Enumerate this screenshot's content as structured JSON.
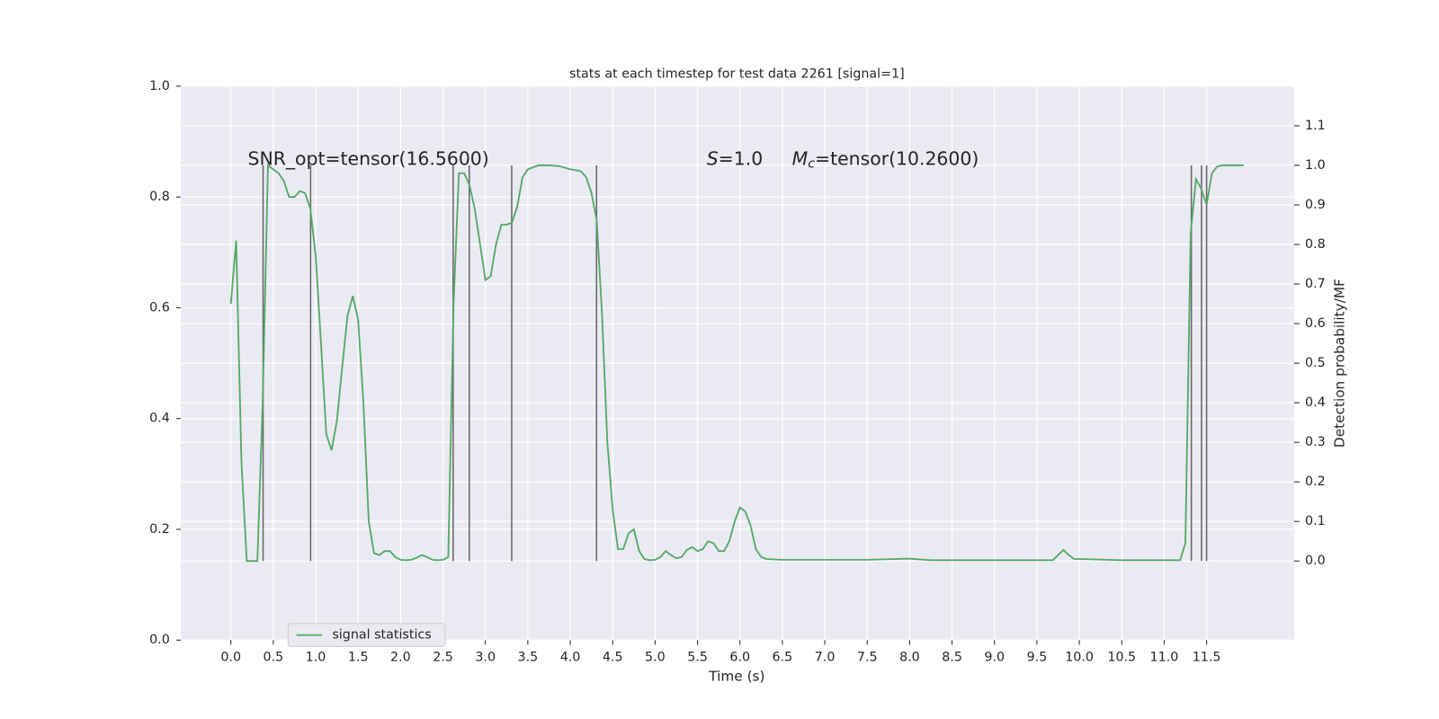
{
  "chart_data": {
    "type": "line",
    "title": "stats at each timestep for test data 2261 [signal=1]",
    "x_label": "Time (s)",
    "y2_label": "Detection probability/MF",
    "grid": true,
    "legend_position": "lower left",
    "xlim": [
      -0.59,
      12.53
    ],
    "ylim": [
      0,
      1
    ],
    "y2lim": [
      -0.2,
      1.2
    ],
    "xticks": [
      {
        "value": 0,
        "label": "0.0"
      },
      {
        "value": 0.5,
        "label": "0.5"
      },
      {
        "value": 1,
        "label": "1.0"
      },
      {
        "value": 1.5,
        "label": "1.5"
      },
      {
        "value": 2,
        "label": "2.0"
      },
      {
        "value": 2.5,
        "label": "2.5"
      },
      {
        "value": 3,
        "label": "3.0"
      },
      {
        "value": 3.5,
        "label": "3.5"
      },
      {
        "value": 4,
        "label": "4.0"
      },
      {
        "value": 4.5,
        "label": "4.5"
      },
      {
        "value": 5,
        "label": "5.0"
      },
      {
        "value": 5.5,
        "label": "5.5"
      },
      {
        "value": 6,
        "label": "6.0"
      },
      {
        "value": 6.5,
        "label": "6.5"
      },
      {
        "value": 7,
        "label": "7.0"
      },
      {
        "value": 7.5,
        "label": "7.5"
      },
      {
        "value": 8,
        "label": "8.0"
      },
      {
        "value": 8.5,
        "label": "8.5"
      },
      {
        "value": 9,
        "label": "9.0"
      },
      {
        "value": 9.5,
        "label": "9.5"
      },
      {
        "value": 10,
        "label": "10.0"
      },
      {
        "value": 10.5,
        "label": "10.5"
      },
      {
        "value": 11,
        "label": "11.0"
      },
      {
        "value": 11.5,
        "label": "11.5"
      }
    ],
    "yticks": [
      {
        "value": 0,
        "label": "0.0"
      },
      {
        "value": 0.2,
        "label": "0.2"
      },
      {
        "value": 0.4,
        "label": "0.4"
      },
      {
        "value": 0.6,
        "label": "0.6"
      },
      {
        "value": 0.8,
        "label": "0.8"
      },
      {
        "value": 1,
        "label": "1.0"
      }
    ],
    "y2ticks": [
      {
        "value": 0,
        "label": "0.0"
      },
      {
        "value": 0.1,
        "label": "0.1"
      },
      {
        "value": 0.2,
        "label": "0.2"
      },
      {
        "value": 0.3,
        "label": "0.3"
      },
      {
        "value": 0.4,
        "label": "0.4"
      },
      {
        "value": 0.5,
        "label": "0.5"
      },
      {
        "value": 0.6,
        "label": "0.6"
      },
      {
        "value": 0.7,
        "label": "0.7"
      },
      {
        "value": 0.8,
        "label": "0.8"
      },
      {
        "value": 0.9,
        "label": "0.9"
      },
      {
        "value": 1,
        "label": "1.0"
      },
      {
        "value": 1.1,
        "label": "1.1"
      }
    ],
    "x": [
      0,
      0.0625,
      0.125,
      0.1875,
      0.25,
      0.3125,
      0.375,
      0.4375,
      0.5,
      0.5625,
      0.625,
      0.6875,
      0.75,
      0.8125,
      0.875,
      0.9375,
      1.0,
      1.0625,
      1.125,
      1.1875,
      1.25,
      1.3125,
      1.375,
      1.4375,
      1.5,
      1.5625,
      1.625,
      1.6875,
      1.75,
      1.8125,
      1.875,
      1.9375,
      2.0,
      2.0625,
      2.125,
      2.1875,
      2.25,
      2.3125,
      2.375,
      2.4375,
      2.5,
      2.5625,
      2.625,
      2.6875,
      2.75,
      2.8125,
      2.875,
      2.9375,
      3.0,
      3.0625,
      3.125,
      3.1875,
      3.25,
      3.3125,
      3.375,
      3.4375,
      3.5,
      3.5625,
      3.625,
      3.75,
      3.875,
      4.0,
      4.0625,
      4.125,
      4.1875,
      4.25,
      4.3125,
      4.375,
      4.4375,
      4.5,
      4.5625,
      4.625,
      4.6875,
      4.75,
      4.8125,
      4.875,
      4.9375,
      5.0,
      5.0625,
      5.125,
      5.1875,
      5.25,
      5.3125,
      5.375,
      5.4375,
      5.5,
      5.5625,
      5.625,
      5.6875,
      5.75,
      5.8125,
      5.875,
      5.9375,
      6.0,
      6.0625,
      6.125,
      6.1875,
      6.25,
      6.3125,
      6.5,
      7.0,
      7.5,
      8.0,
      8.25,
      9.0,
      9.6875,
      9.75,
      9.8125,
      9.875,
      9.9375,
      10.0,
      10.5,
      11.0,
      11.1875,
      11.25,
      11.3125,
      11.375,
      11.4375,
      11.5,
      11.5625,
      11.625,
      11.6875,
      11.9375
    ],
    "series": [
      {
        "name": "signal statistics",
        "color": "#55a868",
        "axis": "y2",
        "values": [
          0.65,
          0.81,
          0.25,
          0,
          0,
          0,
          0.4,
          1.0,
          0.99,
          0.98,
          0.96,
          0.92,
          0.92,
          0.935,
          0.93,
          0.89,
          0.77,
          0.55,
          0.32,
          0.28,
          0.355,
          0.49,
          0.62,
          0.67,
          0.61,
          0.4,
          0.1,
          0.02,
          0.015,
          0.025,
          0.025,
          0.01,
          0.003,
          0.002,
          0.003,
          0.008,
          0.015,
          0.01,
          0.003,
          0.002,
          0.003,
          0.01,
          0.65,
          0.98,
          0.98,
          0.95,
          0.89,
          0.8,
          0.71,
          0.72,
          0.8,
          0.85,
          0.85,
          0.855,
          0.895,
          0.97,
          0.99,
          0.995,
          1.0,
          1.0,
          0.998,
          0.99,
          0.988,
          0.985,
          0.97,
          0.93,
          0.86,
          0.62,
          0.3,
          0.13,
          0.03,
          0.03,
          0.07,
          0.08,
          0.025,
          0.005,
          0.002,
          0.003,
          0.01,
          0.025,
          0.015,
          0.007,
          0.01,
          0.028,
          0.035,
          0.025,
          0.03,
          0.05,
          0.045,
          0.025,
          0.025,
          0.05,
          0.1,
          0.135,
          0.125,
          0.09,
          0.03,
          0.01,
          0.005,
          0.003,
          0.003,
          0.003,
          0.006,
          0.002,
          0.002,
          0.002,
          0.015,
          0.028,
          0.015,
          0.005,
          0.005,
          0.002,
          0.002,
          0.002,
          0.045,
          0.83,
          0.965,
          0.94,
          0.9,
          0.98,
          0.997,
          1.0,
          1.0
        ]
      }
    ],
    "vlines": {
      "x": [
        0.38,
        0.94,
        2.62,
        2.81,
        3.31,
        4.31,
        11.32,
        11.44,
        11.5
      ],
      "ymin": 0,
      "ymax": 1,
      "color": "#666666",
      "axis": "y2"
    },
    "annotations": [
      {
        "text": "SNR_opt=tensor(16.5600)"
      },
      {
        "symbol": "S",
        "text": "=1.0"
      },
      {
        "symbol": "M",
        "subscript": "c",
        "text": "=tensor(10.2600)"
      }
    ]
  }
}
